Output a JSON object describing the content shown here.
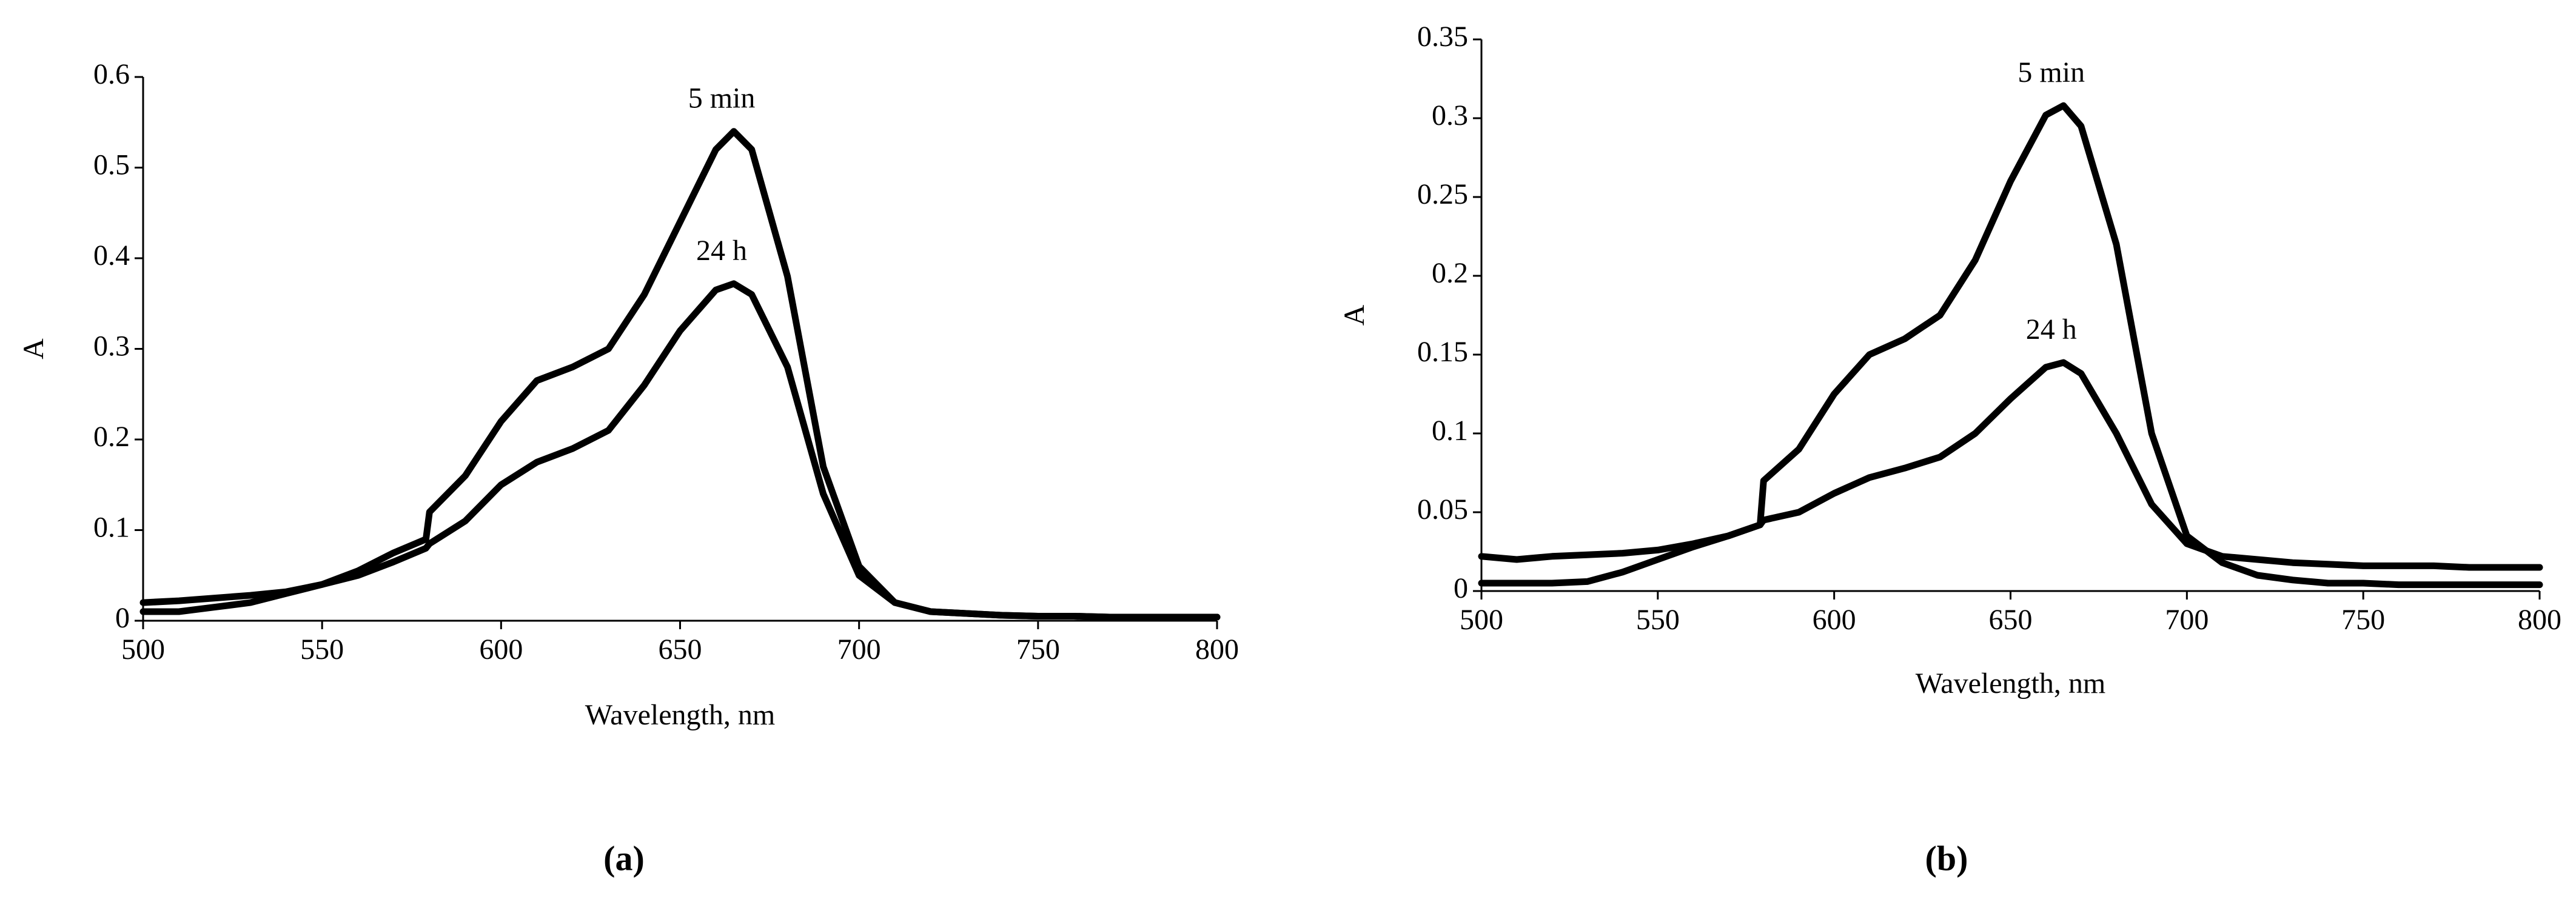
{
  "chart_data": [
    {
      "type": "line",
      "panel_label": "(a)",
      "xlabel": "Wavelength, nm",
      "ylabel": "A",
      "x": [
        500,
        510,
        520,
        530,
        540,
        550,
        560,
        570,
        579,
        580,
        590,
        600,
        610,
        620,
        630,
        640,
        650,
        660,
        665,
        670,
        680,
        690,
        700,
        710,
        720,
        730,
        740,
        750,
        760,
        770,
        780,
        790,
        800
      ],
      "series": [
        {
          "name": "5 min",
          "color": "#000000",
          "values": [
            0.01,
            0.01,
            0.015,
            0.02,
            0.03,
            0.04,
            0.055,
            0.075,
            0.09,
            0.12,
            0.16,
            0.22,
            0.265,
            0.28,
            0.3,
            0.36,
            0.44,
            0.52,
            0.54,
            0.52,
            0.38,
            0.17,
            0.06,
            0.02,
            0.01,
            0.008,
            0.006,
            0.005,
            0.005,
            0.004,
            0.004,
            0.004,
            0.004
          ]
        },
        {
          "name": "24 h",
          "color": "#000000",
          "values": [
            0.02,
            0.022,
            0.025,
            0.028,
            0.032,
            0.04,
            0.05,
            0.065,
            0.08,
            0.085,
            0.11,
            0.15,
            0.175,
            0.19,
            0.21,
            0.26,
            0.32,
            0.365,
            0.372,
            0.36,
            0.28,
            0.14,
            0.05,
            0.02,
            0.01,
            0.008,
            0.006,
            0.005,
            0.005,
            0.004,
            0.004,
            0.004,
            0.004
          ]
        }
      ],
      "xlim": [
        500,
        800
      ],
      "ylim": [
        0,
        0.6
      ],
      "xticks": [
        500,
        550,
        600,
        650,
        700,
        750,
        800
      ],
      "yticks": [
        0,
        0.1,
        0.2,
        0.3,
        0.4,
        0.5,
        0.6
      ]
    },
    {
      "type": "line",
      "panel_label": "(b)",
      "xlabel": "Wavelength, nm",
      "ylabel": "A",
      "x": [
        500,
        510,
        520,
        530,
        540,
        550,
        560,
        570,
        579,
        580,
        590,
        600,
        610,
        620,
        630,
        640,
        650,
        660,
        665,
        670,
        680,
        690,
        700,
        710,
        720,
        730,
        740,
        750,
        760,
        770,
        780,
        790,
        800
      ],
      "series": [
        {
          "name": "5 min",
          "color": "#000000",
          "values": [
            0.005,
            0.005,
            0.005,
            0.006,
            0.012,
            0.02,
            0.028,
            0.035,
            0.042,
            0.07,
            0.09,
            0.125,
            0.15,
            0.16,
            0.175,
            0.21,
            0.26,
            0.302,
            0.308,
            0.295,
            0.22,
            0.1,
            0.035,
            0.018,
            0.01,
            0.007,
            0.005,
            0.005,
            0.004,
            0.004,
            0.004,
            0.004,
            0.004
          ]
        },
        {
          "name": "24 h",
          "color": "#000000",
          "values": [
            0.022,
            0.02,
            0.022,
            0.023,
            0.024,
            0.026,
            0.03,
            0.035,
            0.042,
            0.045,
            0.05,
            0.062,
            0.072,
            0.078,
            0.085,
            0.1,
            0.122,
            0.142,
            0.145,
            0.138,
            0.1,
            0.055,
            0.03,
            0.022,
            0.02,
            0.018,
            0.017,
            0.016,
            0.016,
            0.016,
            0.015,
            0.015,
            0.015
          ]
        }
      ],
      "xlim": [
        500,
        800
      ],
      "ylim": [
        0,
        0.35
      ],
      "xticks": [
        500,
        550,
        600,
        650,
        700,
        750,
        800
      ],
      "yticks": [
        0,
        0.05,
        0.1,
        0.15,
        0.2,
        0.25,
        0.3,
        0.35
      ]
    }
  ]
}
